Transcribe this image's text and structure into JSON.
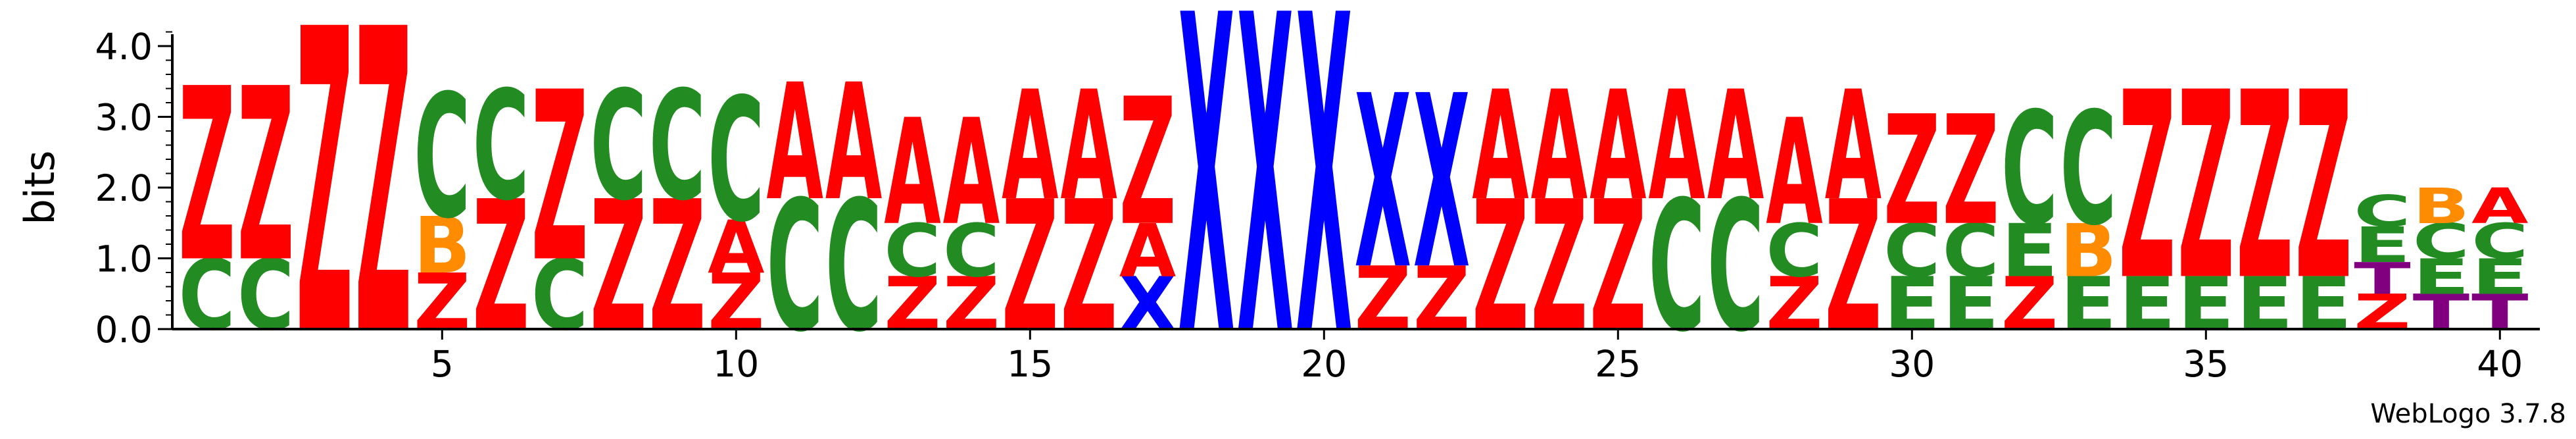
{
  "chart_data": {
    "type": "sequence-logo",
    "ylabel": "bits",
    "ylim": [
      0,
      4.3
    ],
    "yticks": [
      "0.0",
      "1.0",
      "2.0",
      "3.0",
      "4.0"
    ],
    "xtick_labels": [
      "5",
      "10",
      "15",
      "20",
      "25",
      "30",
      "35",
      "40"
    ],
    "xtick_positions": [
      5,
      10,
      15,
      20,
      25,
      30,
      35,
      40
    ],
    "colors": {
      "Z": "#ff0000",
      "A": "#ff0000",
      "C": "#228b22",
      "E": "#228b22",
      "B": "#ff8c00",
      "X": "#0000ff",
      "T": "#800080"
    },
    "positions": [
      {
        "pos": 1,
        "stack": [
          [
            "C",
            1.0
          ],
          [
            "Z",
            2.45
          ]
        ]
      },
      {
        "pos": 2,
        "stack": [
          [
            "C",
            1.0
          ],
          [
            "Z",
            2.45
          ]
        ]
      },
      {
        "pos": 3,
        "stack": [
          [
            "Z",
            4.3
          ]
        ]
      },
      {
        "pos": 4,
        "stack": [
          [
            "Z",
            4.3
          ]
        ]
      },
      {
        "pos": 5,
        "stack": [
          [
            "Z",
            0.8
          ],
          [
            "B",
            0.8
          ],
          [
            "C",
            1.75
          ]
        ]
      },
      {
        "pos": 6,
        "stack": [
          [
            "Z",
            1.85
          ],
          [
            "C",
            1.55
          ]
        ]
      },
      {
        "pos": 7,
        "stack": [
          [
            "C",
            1.0
          ],
          [
            "Z",
            2.4
          ]
        ]
      },
      {
        "pos": 8,
        "stack": [
          [
            "Z",
            1.85
          ],
          [
            "C",
            1.55
          ]
        ]
      },
      {
        "pos": 9,
        "stack": [
          [
            "Z",
            1.85
          ],
          [
            "C",
            1.55
          ]
        ]
      },
      {
        "pos": 10,
        "stack": [
          [
            "Z",
            0.8
          ],
          [
            "A",
            0.75
          ],
          [
            "C",
            1.75
          ]
        ]
      },
      {
        "pos": 11,
        "stack": [
          [
            "C",
            1.85
          ],
          [
            "A",
            1.65
          ]
        ]
      },
      {
        "pos": 12,
        "stack": [
          [
            "C",
            1.85
          ],
          [
            "A",
            1.65
          ]
        ]
      },
      {
        "pos": 13,
        "stack": [
          [
            "Z",
            0.75
          ],
          [
            "C",
            0.75
          ],
          [
            "A",
            1.5
          ]
        ]
      },
      {
        "pos": 14,
        "stack": [
          [
            "Z",
            0.75
          ],
          [
            "C",
            0.75
          ],
          [
            "A",
            1.5
          ]
        ]
      },
      {
        "pos": 15,
        "stack": [
          [
            "Z",
            1.85
          ],
          [
            "A",
            1.55
          ]
        ]
      },
      {
        "pos": 16,
        "stack": [
          [
            "Z",
            1.85
          ],
          [
            "A",
            1.55
          ]
        ]
      },
      {
        "pos": 17,
        "stack": [
          [
            "X",
            0.75
          ],
          [
            "A",
            0.75
          ],
          [
            "Z",
            1.8
          ]
        ]
      },
      {
        "pos": 18,
        "stack": [
          [
            "X",
            4.5
          ]
        ]
      },
      {
        "pos": 19,
        "stack": [
          [
            "X",
            4.5
          ]
        ]
      },
      {
        "pos": 20,
        "stack": [
          [
            "X",
            4.5
          ]
        ]
      },
      {
        "pos": 21,
        "stack": [
          [
            "Z",
            0.9
          ],
          [
            "X",
            2.45
          ]
        ]
      },
      {
        "pos": 22,
        "stack": [
          [
            "Z",
            0.9
          ],
          [
            "X",
            2.45
          ]
        ]
      },
      {
        "pos": 23,
        "stack": [
          [
            "Z",
            1.85
          ],
          [
            "A",
            1.55
          ]
        ]
      },
      {
        "pos": 24,
        "stack": [
          [
            "Z",
            1.85
          ],
          [
            "A",
            1.55
          ]
        ]
      },
      {
        "pos": 25,
        "stack": [
          [
            "Z",
            1.85
          ],
          [
            "A",
            1.55
          ]
        ]
      },
      {
        "pos": 26,
        "stack": [
          [
            "C",
            1.85
          ],
          [
            "A",
            1.55
          ]
        ]
      },
      {
        "pos": 27,
        "stack": [
          [
            "C",
            1.85
          ],
          [
            "A",
            1.55
          ]
        ]
      },
      {
        "pos": 28,
        "stack": [
          [
            "Z",
            0.75
          ],
          [
            "C",
            0.75
          ],
          [
            "A",
            1.5
          ]
        ]
      },
      {
        "pos": 29,
        "stack": [
          [
            "Z",
            1.85
          ],
          [
            "A",
            1.55
          ]
        ]
      },
      {
        "pos": 30,
        "stack": [
          [
            "E",
            0.75
          ],
          [
            "C",
            0.75
          ],
          [
            "Z",
            1.55
          ]
        ]
      },
      {
        "pos": 31,
        "stack": [
          [
            "E",
            0.75
          ],
          [
            "C",
            0.75
          ],
          [
            "Z",
            1.55
          ]
        ]
      },
      {
        "pos": 32,
        "stack": [
          [
            "Z",
            0.75
          ],
          [
            "E",
            0.75
          ],
          [
            "C",
            1.6
          ]
        ]
      },
      {
        "pos": 33,
        "stack": [
          [
            "E",
            0.75
          ],
          [
            "B",
            0.75
          ],
          [
            "C",
            1.6
          ]
        ]
      },
      {
        "pos": 34,
        "stack": [
          [
            "E",
            0.75
          ],
          [
            "Z",
            2.65
          ]
        ]
      },
      {
        "pos": 35,
        "stack": [
          [
            "E",
            0.75
          ],
          [
            "Z",
            2.65
          ]
        ]
      },
      {
        "pos": 36,
        "stack": [
          [
            "E",
            0.75
          ],
          [
            "Z",
            2.65
          ]
        ]
      },
      {
        "pos": 37,
        "stack": [
          [
            "E",
            0.75
          ],
          [
            "Z",
            2.65
          ]
        ]
      },
      {
        "pos": 38,
        "stack": [
          [
            "Z",
            0.5
          ],
          [
            "T",
            0.45
          ],
          [
            "E",
            0.5
          ],
          [
            "C",
            0.45
          ]
        ]
      },
      {
        "pos": 39,
        "stack": [
          [
            "T",
            0.5
          ],
          [
            "E",
            0.5
          ],
          [
            "C",
            0.5
          ],
          [
            "B",
            0.5
          ]
        ]
      },
      {
        "pos": 40,
        "stack": [
          [
            "T",
            0.5
          ],
          [
            "E",
            0.5
          ],
          [
            "C",
            0.5
          ],
          [
            "A",
            0.5
          ]
        ]
      }
    ]
  },
  "footer": {
    "version_label": "WebLogo 3.7.8"
  }
}
